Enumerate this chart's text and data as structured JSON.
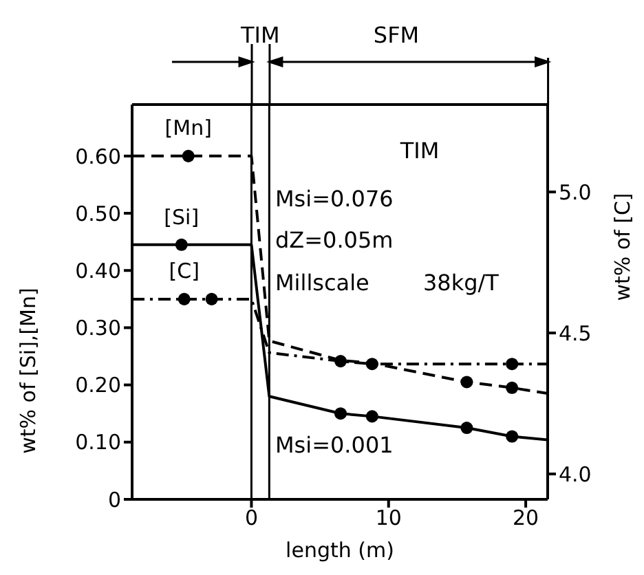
{
  "chart_data": {
    "type": "line",
    "xlabel": "length (m)",
    "ylabel": "wt% of [Si],[Mn]",
    "y2label": "wt% of [C]",
    "xlim": [
      -8.7,
      21.6
    ],
    "xticks": [
      0,
      10,
      20
    ],
    "ylim": [
      0,
      0.69
    ],
    "yticks": [
      0,
      {
        "value": 0.1,
        "label": "0.10"
      },
      {
        "value": 0.2,
        "label": "0.20"
      },
      {
        "value": 0.3,
        "label": "0.30"
      },
      {
        "value": 0.4,
        "label": "0.40"
      },
      {
        "value": 0.5,
        "label": "0.50"
      },
      {
        "value": 0.6,
        "label": "0.60"
      }
    ],
    "y2lim": [
      3.91,
      5.31
    ],
    "y2ticks": [
      {
        "value": 4,
        "label": "4.0"
      },
      4.5,
      {
        "value": 5,
        "label": "5.0"
      }
    ],
    "series": [
      {
        "name": "[Mn]",
        "color": "#000000",
        "line_style": "dashed",
        "marker": "none",
        "x": [
          -8.7,
          0,
          1.3,
          6.5,
          8.8,
          15.7,
          19.0,
          21.6
        ],
        "values": [
          0.6,
          0.6,
          0.277,
          0.243,
          0.238,
          0.205,
          0.195,
          0.185
        ]
      },
      {
        "type": "scatter",
        "color": "#000000",
        "marker": "circle",
        "x": [
          -4.6,
          15.7,
          19.0
        ],
        "values": [
          0.6,
          0.205,
          0.195
        ]
      },
      {
        "name": "[Si]",
        "color": "#000000",
        "line_style": "solid",
        "marker": "none",
        "x": [
          -8.7,
          0,
          1.3,
          6.5,
          8.8,
          15.7,
          19.0,
          21.6
        ],
        "values": [
          0.445,
          0.445,
          0.18,
          0.15,
          0.145,
          0.125,
          0.11,
          0.104
        ]
      },
      {
        "type": "scatter",
        "color": "#000000",
        "marker": "circle",
        "x": [
          -5.1,
          6.5,
          8.8,
          15.7,
          19.0
        ],
        "values": [
          0.445,
          0.15,
          0.145,
          0.125,
          0.11
        ]
      },
      {
        "name": "[C]",
        "axis": "y2",
        "color": "#000000",
        "line_style": "dashdot",
        "marker": "none",
        "x": [
          -8.7,
          0,
          1.3,
          6.5,
          8.8,
          19.0,
          21.6
        ],
        "values": [
          4.62,
          4.62,
          4.43,
          4.4,
          4.39,
          4.39,
          4.39
        ]
      },
      {
        "type": "scatter",
        "axis": "y2",
        "color": "#000000",
        "marker": "circle",
        "x": [
          -4.9,
          -2.9,
          6.5,
          8.8,
          19.0
        ],
        "values": [
          4.62,
          4.62,
          4.4,
          4.39,
          4.39
        ]
      }
    ],
    "ref_lines": [
      {
        "axis": "x",
        "value": 0,
        "color": "#000000"
      },
      {
        "axis": "x",
        "value": 1.3,
        "color": "#000000"
      }
    ],
    "annotations": [
      "TIM",
      "SFM",
      "TIM",
      "Msi=0.076",
      "dZ=0.05m",
      "Millscale 38kg/T",
      "Msi=0.001"
    ]
  }
}
